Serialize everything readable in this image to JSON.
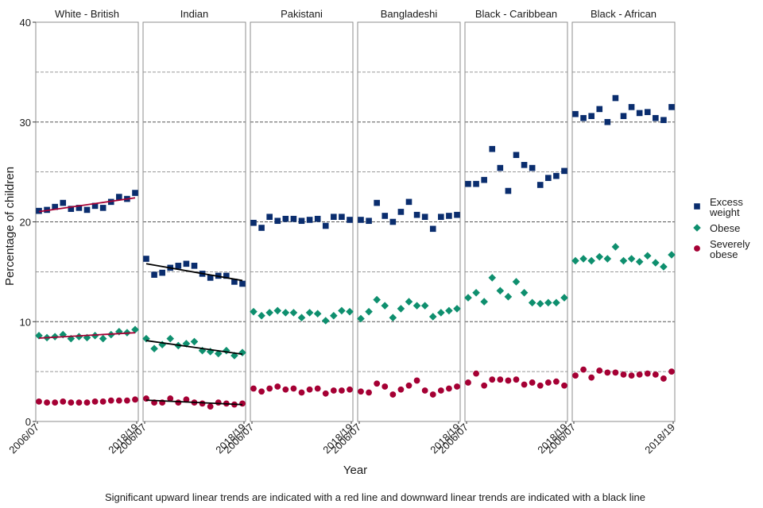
{
  "chart_data": {
    "type": "scatter",
    "xlabel": "Year",
    "ylabel": "Percentage of children",
    "ylim": [
      0,
      40
    ],
    "yticks": [
      0,
      10,
      20,
      30,
      40
    ],
    "x": [
      "2006/07",
      "2007/08",
      "2008/09",
      "2009/10",
      "2010/11",
      "2011/12",
      "2012/13",
      "2013/14",
      "2014/15",
      "2015/16",
      "2016/17",
      "2017/18",
      "2018/19"
    ],
    "x_tick_labels": [
      "2006/07",
      "2018/19"
    ],
    "grid": "horizontal dashed",
    "legend_position": "right",
    "legend": [
      "Excess weight",
      "Obese",
      "Severely obese"
    ],
    "footnote": "Significant upward linear trends are indicated with a red line and downward linear trends are indicated with a black line",
    "series_styles": {
      "excess": {
        "color": "#0a2d6e",
        "marker": "square"
      },
      "obese": {
        "color": "#0e8f6e",
        "marker": "diamond"
      },
      "severe": {
        "color": "#a50034",
        "marker": "circle"
      }
    },
    "trend_colors": {
      "up": "#a50034",
      "down": "#000000"
    },
    "panels": [
      {
        "title": "White - British",
        "excess": [
          21.1,
          21.2,
          21.5,
          21.9,
          21.3,
          21.4,
          21.2,
          21.6,
          21.4,
          22.0,
          22.5,
          22.3,
          22.9
        ],
        "obese": [
          8.6,
          8.4,
          8.5,
          8.7,
          8.3,
          8.5,
          8.4,
          8.6,
          8.3,
          8.7,
          9.0,
          8.9,
          9.2
        ],
        "severe": [
          2.0,
          1.9,
          1.9,
          2.0,
          1.9,
          1.9,
          1.9,
          2.0,
          2.0,
          2.1,
          2.1,
          2.1,
          2.2
        ],
        "trends": {
          "excess": "up",
          "obese": "up"
        }
      },
      {
        "title": "Indian",
        "excess": [
          16.3,
          14.7,
          14.9,
          15.4,
          15.6,
          15.8,
          15.6,
          14.8,
          14.4,
          14.6,
          14.6,
          14.0,
          13.8
        ],
        "obese": [
          8.3,
          7.3,
          7.7,
          8.3,
          7.6,
          7.8,
          8.0,
          7.1,
          7.0,
          6.8,
          7.1,
          6.6,
          6.9
        ],
        "severe": [
          2.3,
          1.9,
          1.9,
          2.3,
          1.9,
          2.2,
          1.9,
          1.8,
          1.5,
          1.9,
          1.8,
          1.7,
          1.8
        ],
        "trends": {
          "excess": "down",
          "obese": "down",
          "severe": "down"
        }
      },
      {
        "title": "Pakistani",
        "excess": [
          19.9,
          19.4,
          20.5,
          20.1,
          20.3,
          20.3,
          20.1,
          20.2,
          20.3,
          19.6,
          20.5,
          20.5,
          20.2
        ],
        "obese": [
          11.0,
          10.6,
          10.9,
          11.1,
          10.9,
          10.9,
          10.4,
          10.9,
          10.8,
          10.1,
          10.6,
          11.1,
          11.0
        ],
        "severe": [
          3.3,
          3.0,
          3.3,
          3.5,
          3.2,
          3.3,
          2.9,
          3.2,
          3.3,
          2.8,
          3.1,
          3.1,
          3.2
        ]
      },
      {
        "title": "Bangladeshi",
        "excess": [
          20.2,
          20.1,
          21.9,
          20.6,
          20.0,
          21.0,
          22.0,
          20.7,
          20.5,
          19.3,
          20.5,
          20.6,
          20.7
        ],
        "obese": [
          10.3,
          11.0,
          12.2,
          11.6,
          10.4,
          11.3,
          12.0,
          11.6,
          11.6,
          10.5,
          10.9,
          11.1,
          11.3
        ],
        "severe": [
          3.0,
          2.9,
          3.8,
          3.5,
          2.7,
          3.2,
          3.6,
          4.1,
          3.1,
          2.7,
          3.1,
          3.3,
          3.5
        ]
      },
      {
        "title": "Black - Caribbean",
        "excess": [
          23.8,
          23.8,
          24.2,
          27.3,
          25.4,
          23.1,
          26.7,
          25.7,
          25.4,
          23.7,
          24.4,
          24.6,
          25.1
        ],
        "obese": [
          12.4,
          12.9,
          12.0,
          14.4,
          13.1,
          12.5,
          14.0,
          12.9,
          11.9,
          11.8,
          11.9,
          11.9,
          12.4
        ],
        "severe": [
          3.9,
          4.8,
          3.6,
          4.2,
          4.2,
          4.1,
          4.2,
          3.7,
          3.9,
          3.6,
          3.9,
          4.0,
          3.6
        ]
      },
      {
        "title": "Black - African",
        "excess": [
          30.8,
          30.4,
          30.6,
          31.3,
          30.0,
          32.4,
          30.6,
          31.5,
          30.9,
          31.0,
          30.4,
          30.2,
          31.5
        ],
        "obese": [
          16.1,
          16.3,
          16.1,
          16.5,
          16.3,
          17.5,
          16.1,
          16.3,
          16.0,
          16.6,
          15.9,
          15.5,
          16.7
        ],
        "severe": [
          4.6,
          5.2,
          4.4,
          5.1,
          4.9,
          4.9,
          4.7,
          4.6,
          4.7,
          4.8,
          4.7,
          4.3,
          5.0
        ]
      }
    ]
  }
}
